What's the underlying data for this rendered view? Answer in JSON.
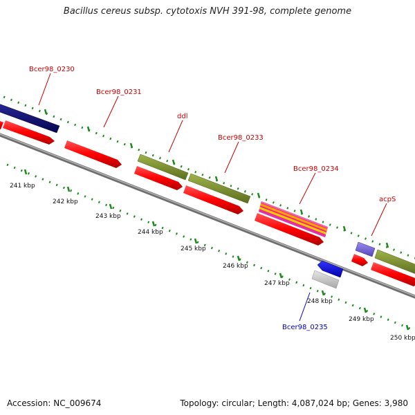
{
  "title": "Bacillus cereus subsp. cytotoxis NVH 391-98, complete genome",
  "accession": "Accession: NC_009674",
  "summary": "Topology: circular; Length: 4,087,024 bp; Genes: 3,980",
  "colors": {
    "backbone": "#8a8a8a",
    "cds": "#ff0000",
    "navy_gene": "#0a0a6e",
    "olive_gene": "#7a8f2e",
    "violet_gene": "#7766dd",
    "blue_gene": "#0000ee",
    "grey_gene": "#c8c8c8",
    "label_red": "#cc0000",
    "label_blue": "#0000cc",
    "tick": "#1d8a1d"
  },
  "gene_labels": [
    {
      "id": "bcer98-0230",
      "text": "Bcer98_0230",
      "color": "red"
    },
    {
      "id": "bcer98-0231",
      "text": "Bcer98_0231",
      "color": "red"
    },
    {
      "id": "ddl",
      "text": "ddl",
      "color": "red"
    },
    {
      "id": "bcer98-0233",
      "text": "Bcer98_0233",
      "color": "red"
    },
    {
      "id": "bcer98-0234",
      "text": "Bcer98_0234",
      "color": "red"
    },
    {
      "id": "acps",
      "text": "acpS",
      "color": "red"
    },
    {
      "id": "bcer98-0235",
      "text": "Bcer98_0235",
      "color": "blue"
    }
  ],
  "ticks": [
    "241 kbp",
    "242 kbp",
    "243 kbp",
    "244 kbp",
    "245 kbp",
    "246 kbp",
    "247 kbp",
    "248 kbp",
    "249 kbp",
    "250 kbp"
  ]
}
